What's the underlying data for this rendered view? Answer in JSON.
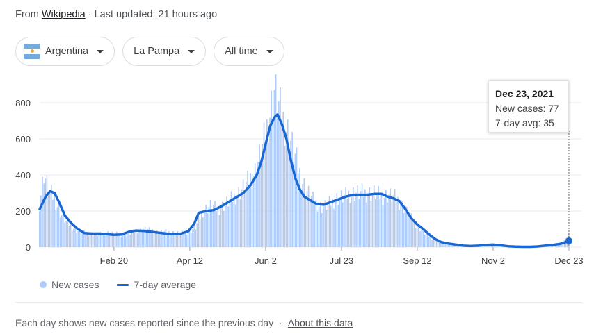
{
  "source": {
    "prefix": "From",
    "link": "Wikipedia",
    "updated": "· Last updated: 21 hours ago"
  },
  "filters": {
    "country": {
      "label": "Argentina",
      "flag": "argentina-flag"
    },
    "region": {
      "label": "La Pampa"
    },
    "period": {
      "label": "All time"
    }
  },
  "tooltip": {
    "date": "Dec 23, 2021",
    "new_cases": "New cases: 77",
    "avg": "7-day avg: 35"
  },
  "legend": {
    "bars": "New cases",
    "line": "7-day average"
  },
  "footer": {
    "text": "Each day shows new cases reported since the previous day",
    "sep": "·",
    "link": "About this data"
  },
  "colors": {
    "bar": "#aecbfa",
    "line": "#1967d2",
    "grid": "#e8eaed"
  },
  "chart_data": {
    "type": "bar",
    "overlay": "line",
    "x_start": "2021-01-01",
    "x_end": "2021-12-23",
    "xticks": [
      "Feb 20",
      "Apr 12",
      "Jun 2",
      "Jul 23",
      "Sep 12",
      "Nov 2",
      "Dec 23"
    ],
    "yticks": [
      0,
      200,
      400,
      600,
      800
    ],
    "ylim": [
      0,
      900
    ],
    "grid": true,
    "legend_position": "bottom-left",
    "series": [
      {
        "name": "New cases",
        "kind": "bar",
        "points": [
          [
            0,
            240
          ],
          [
            3,
            410
          ],
          [
            6,
            320
          ],
          [
            10,
            270
          ],
          [
            14,
            190
          ],
          [
            18,
            140
          ],
          [
            22,
            110
          ],
          [
            26,
            90
          ],
          [
            30,
            80
          ],
          [
            35,
            75
          ],
          [
            40,
            70
          ],
          [
            45,
            80
          ],
          [
            50,
            75
          ],
          [
            55,
            70
          ],
          [
            60,
            75
          ],
          [
            65,
            90
          ],
          [
            70,
            100
          ],
          [
            75,
            95
          ],
          [
            80,
            85
          ],
          [
            85,
            85
          ],
          [
            90,
            80
          ],
          [
            95,
            75
          ],
          [
            100,
            85
          ],
          [
            105,
            110
          ],
          [
            110,
            200
          ],
          [
            115,
            230
          ],
          [
            120,
            210
          ],
          [
            125,
            240
          ],
          [
            130,
            270
          ],
          [
            135,
            310
          ],
          [
            140,
            360
          ],
          [
            145,
            420
          ],
          [
            150,
            550
          ],
          [
            154,
            700
          ],
          [
            158,
            870
          ],
          [
            161,
            780
          ],
          [
            164,
            700
          ],
          [
            168,
            620
          ],
          [
            172,
            500
          ],
          [
            176,
            380
          ],
          [
            180,
            310
          ],
          [
            185,
            250
          ],
          [
            190,
            220
          ],
          [
            195,
            240
          ],
          [
            200,
            270
          ],
          [
            205,
            280
          ],
          [
            210,
            300
          ],
          [
            215,
            300
          ],
          [
            220,
            300
          ],
          [
            225,
            300
          ],
          [
            230,
            280
          ],
          [
            235,
            290
          ],
          [
            240,
            270
          ],
          [
            245,
            220
          ],
          [
            250,
            160
          ],
          [
            255,
            110
          ],
          [
            260,
            70
          ],
          [
            265,
            45
          ],
          [
            270,
            30
          ],
          [
            275,
            22
          ],
          [
            280,
            18
          ],
          [
            285,
            12
          ],
          [
            290,
            10
          ],
          [
            295,
            12
          ],
          [
            300,
            15
          ],
          [
            305,
            15
          ],
          [
            310,
            10
          ],
          [
            315,
            8
          ],
          [
            320,
            5
          ],
          [
            325,
            5
          ],
          [
            330,
            5
          ],
          [
            335,
            8
          ],
          [
            340,
            12
          ],
          [
            345,
            15
          ],
          [
            350,
            20
          ],
          [
            354,
            45
          ],
          [
            356,
            77
          ]
        ]
      },
      {
        "name": "7-day average",
        "kind": "line",
        "points": [
          [
            0,
            210
          ],
          [
            4,
            280
          ],
          [
            7,
            310
          ],
          [
            10,
            300
          ],
          [
            13,
            250
          ],
          [
            17,
            175
          ],
          [
            21,
            135
          ],
          [
            25,
            105
          ],
          [
            30,
            78
          ],
          [
            35,
            75
          ],
          [
            40,
            75
          ],
          [
            45,
            72
          ],
          [
            50,
            68
          ],
          [
            55,
            70
          ],
          [
            60,
            85
          ],
          [
            65,
            92
          ],
          [
            70,
            90
          ],
          [
            75,
            85
          ],
          [
            80,
            80
          ],
          [
            85,
            75
          ],
          [
            90,
            72
          ],
          [
            95,
            75
          ],
          [
            100,
            88
          ],
          [
            104,
            130
          ],
          [
            107,
            190
          ],
          [
            112,
            200
          ],
          [
            117,
            205
          ],
          [
            122,
            225
          ],
          [
            127,
            250
          ],
          [
            132,
            275
          ],
          [
            137,
            300
          ],
          [
            142,
            345
          ],
          [
            146,
            400
          ],
          [
            149,
            470
          ],
          [
            152,
            570
          ],
          [
            155,
            670
          ],
          [
            158,
            720
          ],
          [
            160,
            735
          ],
          [
            163,
            680
          ],
          [
            166,
            600
          ],
          [
            169,
            480
          ],
          [
            172,
            380
          ],
          [
            175,
            320
          ],
          [
            178,
            280
          ],
          [
            181,
            265
          ],
          [
            186,
            240
          ],
          [
            191,
            235
          ],
          [
            196,
            250
          ],
          [
            201,
            265
          ],
          [
            206,
            280
          ],
          [
            211,
            290
          ],
          [
            216,
            290
          ],
          [
            220,
            290
          ],
          [
            225,
            295
          ],
          [
            230,
            295
          ],
          [
            234,
            280
          ],
          [
            238,
            270
          ],
          [
            242,
            255
          ],
          [
            246,
            210
          ],
          [
            250,
            160
          ],
          [
            254,
            125
          ],
          [
            258,
            100
          ],
          [
            262,
            70
          ],
          [
            266,
            45
          ],
          [
            270,
            28
          ],
          [
            275,
            20
          ],
          [
            280,
            14
          ],
          [
            285,
            8
          ],
          [
            290,
            6
          ],
          [
            295,
            8
          ],
          [
            300,
            12
          ],
          [
            305,
            14
          ],
          [
            310,
            10
          ],
          [
            315,
            5
          ],
          [
            320,
            3
          ],
          [
            325,
            2
          ],
          [
            330,
            2
          ],
          [
            335,
            4
          ],
          [
            340,
            8
          ],
          [
            345,
            12
          ],
          [
            350,
            18
          ],
          [
            354,
            28
          ],
          [
            356,
            35
          ]
        ]
      }
    ]
  }
}
